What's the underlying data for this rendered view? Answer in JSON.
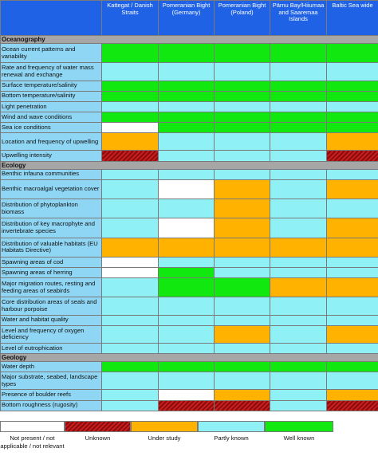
{
  "columns": [
    "Kattegat / Danish Straits",
    "Pomeranian Bight (Germany)",
    "Pomeranian Bight (Poland)",
    "Pärnu Bay/Hiiumaa and Saaremaa Islands",
    "Baltic Sea wide"
  ],
  "colors": {
    "well": "#10e810",
    "partly": "#8ff0f6",
    "study": "#ffb200",
    "np": "#ffffff",
    "unknown": "#c81e1e"
  },
  "sections": [
    {
      "title": "Oceanography",
      "rows": [
        {
          "label": "Ocean current patterns and variability",
          "status": [
            "well",
            "well",
            "well",
            "well",
            "well"
          ]
        },
        {
          "label": "Rate and frequency of water mass renewal and exchange",
          "status": [
            "partly",
            "partly",
            "partly",
            "partly",
            "partly"
          ]
        },
        {
          "label": "Surface temperature/salinity",
          "status": [
            "well",
            "well",
            "well",
            "well",
            "well"
          ]
        },
        {
          "label": "Bottom temperature/salinity",
          "status": [
            "well",
            "well",
            "well",
            "well",
            "well"
          ]
        },
        {
          "label": "Light penetration",
          "status": [
            "partly",
            "partly",
            "partly",
            "partly",
            "partly"
          ]
        },
        {
          "label": "Wind and wave conditions",
          "status": [
            "well",
            "well",
            "well",
            "well",
            "well"
          ]
        },
        {
          "label": "Sea ice conditions",
          "status": [
            "np",
            "well",
            "well",
            "well",
            "well"
          ]
        },
        {
          "label": "Location and frequency of upwelling",
          "status": [
            "study",
            "partly",
            "partly",
            "partly",
            "study"
          ]
        },
        {
          "label": "Upwelling intensity",
          "status": [
            "unknown",
            "partly",
            "partly",
            "partly",
            "unknown"
          ]
        }
      ]
    },
    {
      "title": "Ecology",
      "rows": [
        {
          "label": "Benthic infauna communities",
          "status": [
            "partly",
            "partly",
            "partly",
            "partly",
            "partly"
          ]
        },
        {
          "label": "Benthic macroalgal vegetation cover",
          "status": [
            "partly",
            "np",
            "study",
            "partly",
            "study"
          ]
        },
        {
          "label": "Distribution of phytoplankton biomass",
          "status": [
            "partly",
            "partly",
            "study",
            "partly",
            "partly"
          ]
        },
        {
          "label": "Distribution of key macrophyte and invertebrate species",
          "status": [
            "partly",
            "np",
            "study",
            "partly",
            "study"
          ]
        },
        {
          "label": "Distribution of valuable habitats (EU Habitats Directive)",
          "status": [
            "study",
            "study",
            "study",
            "study",
            "study"
          ]
        },
        {
          "label": "Spawning areas of cod",
          "status": [
            "np",
            "partly",
            "partly",
            "partly",
            "partly"
          ]
        },
        {
          "label": "Spawning areas of herring",
          "status": [
            "np",
            "well",
            "partly",
            "partly",
            "partly"
          ]
        },
        {
          "label": "Major migration routes, resting and feeding areas of seabirds",
          "status": [
            "partly",
            "well",
            "well",
            "study",
            "study"
          ]
        },
        {
          "label": "Core distribution areas of seals and harbour porpoise",
          "status": [
            "partly",
            "partly",
            "partly",
            "partly",
            "partly"
          ]
        },
        {
          "label": "Water and habitat quality",
          "status": [
            "partly",
            "partly",
            "partly",
            "partly",
            "partly"
          ]
        },
        {
          "label": "Level and frequency of oxygen deficiency",
          "status": [
            "partly",
            "partly",
            "study",
            "partly",
            "study"
          ]
        },
        {
          "label": "Level of eutrophication",
          "status": [
            "partly",
            "partly",
            "partly",
            "partly",
            "partly"
          ]
        }
      ]
    },
    {
      "title": "Geology",
      "rows": [
        {
          "label": "Water depth",
          "status": [
            "well",
            "well",
            "well",
            "well",
            "well"
          ]
        },
        {
          "label": "Major substrate, seabed, landscape types",
          "status": [
            "partly",
            "partly",
            "partly",
            "partly",
            "partly"
          ]
        },
        {
          "label": "Presence of boulder reefs",
          "status": [
            "partly",
            "np",
            "study",
            "partly",
            "study"
          ]
        },
        {
          "label": "Bottom roughness (rugosity)",
          "status": [
            "partly",
            "unknown",
            "unknown",
            "partly",
            "unknown"
          ]
        }
      ]
    }
  ],
  "legend": [
    {
      "key": "np",
      "label": "Not present / not applicable / not relevant"
    },
    {
      "key": "unknown",
      "label": "Unknown"
    },
    {
      "key": "study",
      "label": "Under study"
    },
    {
      "key": "partly",
      "label": "Partly known"
    },
    {
      "key": "well",
      "label": "Well known"
    }
  ]
}
